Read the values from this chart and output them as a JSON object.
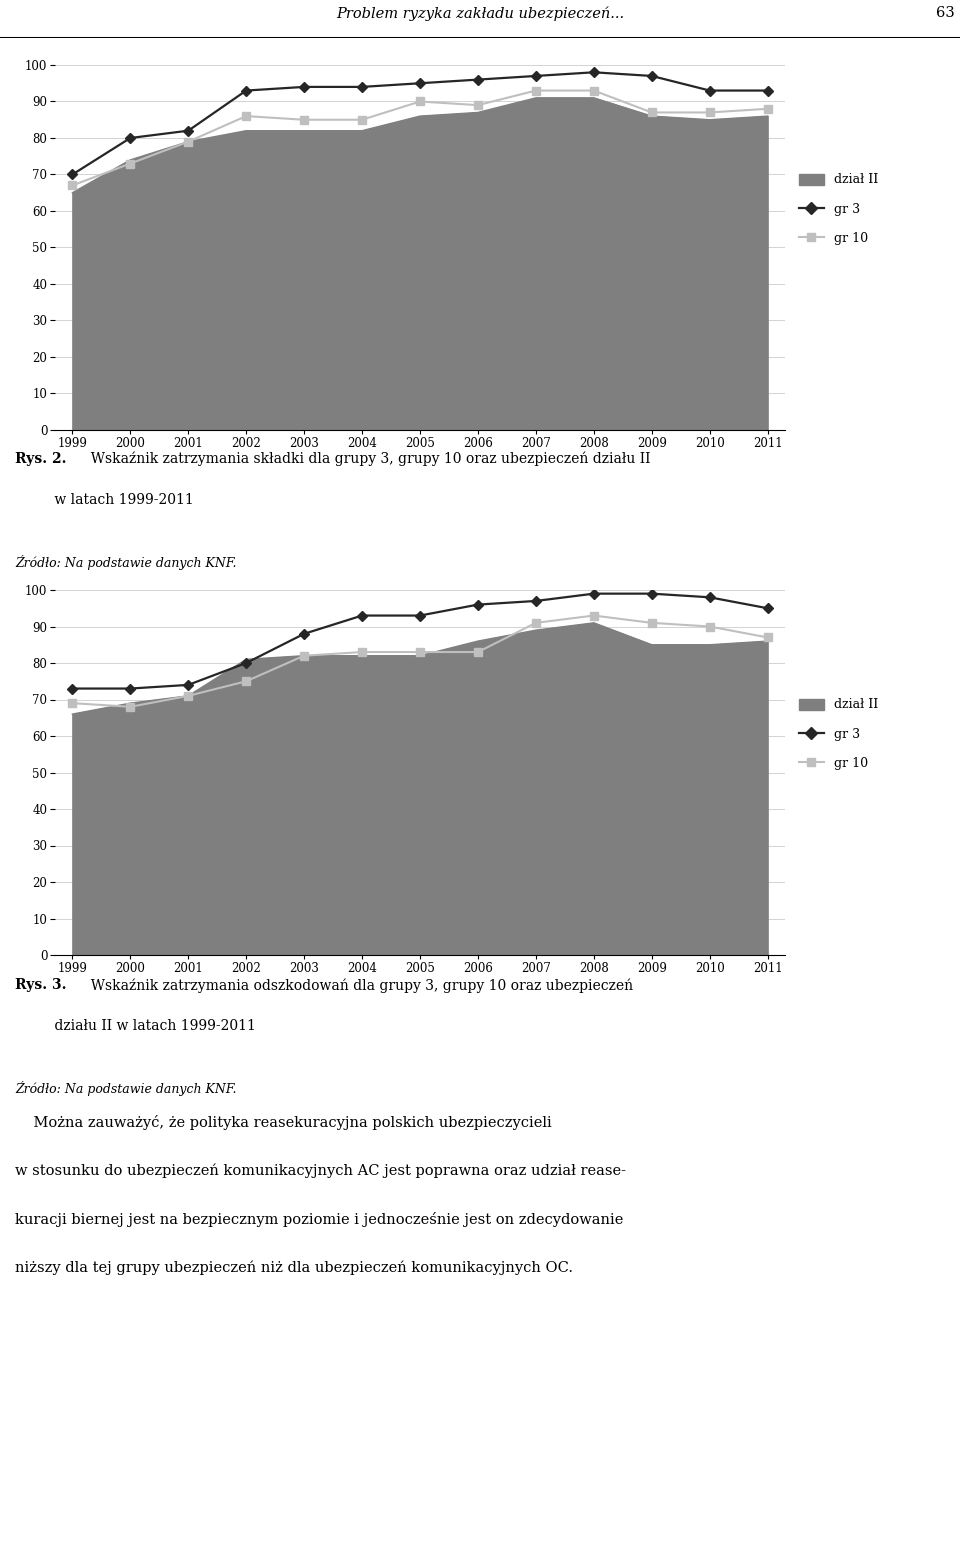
{
  "years": [
    1999,
    2000,
    2001,
    2002,
    2003,
    2004,
    2005,
    2006,
    2007,
    2008,
    2009,
    2010,
    2011
  ],
  "chart1": {
    "dzial_II": [
      65,
      74,
      79,
      82,
      82,
      82,
      86,
      87,
      91,
      91,
      86,
      85,
      86
    ],
    "gr3": [
      70,
      80,
      82,
      93,
      94,
      94,
      95,
      96,
      97,
      98,
      97,
      93,
      93
    ],
    "gr10": [
      67,
      73,
      79,
      86,
      85,
      85,
      90,
      89,
      93,
      93,
      87,
      87,
      88
    ]
  },
  "chart2": {
    "dzial_II": [
      66,
      69,
      71,
      81,
      82,
      82,
      82,
      86,
      89,
      91,
      85,
      85,
      86
    ],
    "gr3": [
      73,
      73,
      74,
      80,
      88,
      93,
      93,
      96,
      97,
      99,
      99,
      98,
      95
    ],
    "gr10": [
      69,
      68,
      71,
      75,
      82,
      83,
      83,
      83,
      91,
      93,
      91,
      90,
      87
    ]
  },
  "page_header": "Problem ryzyka zakładu ubezpieczeń...",
  "page_number": "63",
  "caption1_bold": "Rys. 2.",
  "caption1_normal": "  Wskaźnik zatrzymania składki dla grupy 3, grupy 10 oraz ubezpieczeń działu II",
  "caption1_line2": "         w latach 1999-2011",
  "source1": "Źródło: Na podstawie danych KNF.",
  "caption2_bold": "Rys. 3.",
  "caption2_normal": "  Wskaźnik zatrzymania odszkodowań dla grupy 3, grupy 10 oraz ubezpieczeń",
  "caption2_line2": "         działu II w latach 1999-2011",
  "source2": "Źródło: Na podstawie danych KNF.",
  "body_text_lines": [
    "    Można zauważyć, że polityka reasekuracyjna polskich ubezpieczycieli",
    "w stosunku do ubezpieczeń komunikacyjnych AC jest poprawna oraz udział rease-",
    "kuracji biernej jest na bezpiecznym poziomie i jednocześnie jest on zdecydowanie",
    "niższy dla tej grupy ubezpieczeń niż dla ubezpieczeń komunikacyjnych OC."
  ],
  "area_color": "#7f7f7f",
  "gr3_color": "#262626",
  "gr10_color": "#bfbfbf",
  "ylim": [
    0,
    100
  ],
  "yticks": [
    0,
    10,
    20,
    30,
    40,
    50,
    60,
    70,
    80,
    90,
    100
  ]
}
